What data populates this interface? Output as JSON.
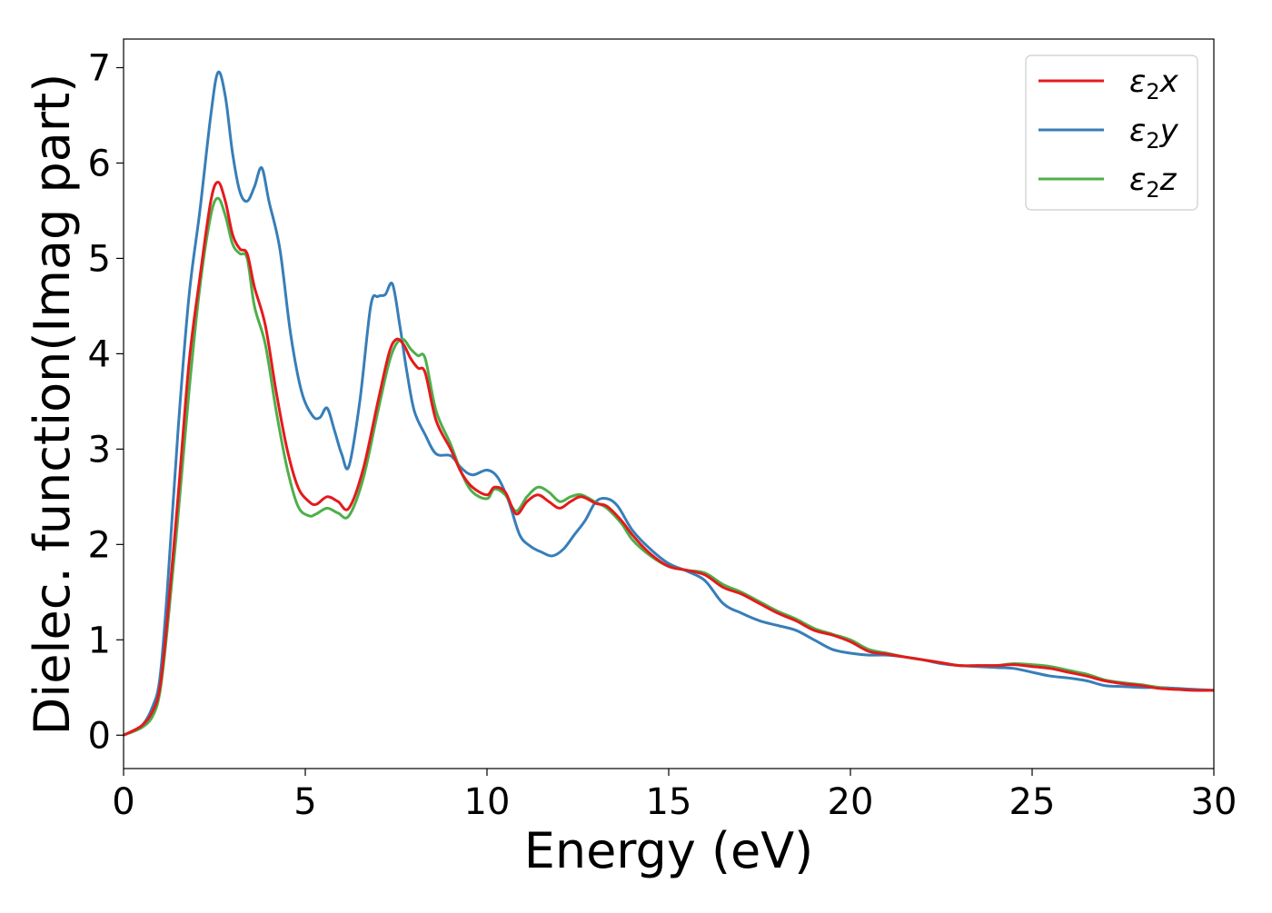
{
  "chart_data": {
    "type": "line",
    "title": "",
    "xlabel": "Energy (eV)",
    "ylabel": "Dielec. function(Imag part)",
    "xlim": [
      0,
      30
    ],
    "ylim": [
      -0.35,
      7.3
    ],
    "xticks": [
      0,
      5,
      10,
      15,
      20,
      25,
      30
    ],
    "yticks": [
      0,
      1,
      2,
      3,
      4,
      5,
      6,
      7
    ],
    "grid": false,
    "legend": "top-right",
    "legend_entries": [
      {
        "base": "ε",
        "sub": "2",
        "tail": "x"
      },
      {
        "base": "ε",
        "sub": "2",
        "tail": "y"
      },
      {
        "base": "ε",
        "sub": "2",
        "tail": "z"
      }
    ],
    "series": [
      {
        "color": "#e41a1c",
        "x": [
          0,
          0.5,
          0.8,
          1,
          1.2,
          1.5,
          1.8,
          2.1,
          2.4,
          2.6,
          2.8,
          3,
          3.2,
          3.4,
          3.6,
          3.9,
          4.2,
          4.5,
          4.8,
          5.1,
          5.3,
          5.6,
          5.9,
          6.2,
          6.6,
          7,
          7.3,
          7.5,
          7.7,
          7.9,
          8.1,
          8.3,
          8.6,
          9,
          9.3,
          9.6,
          10,
          10.2,
          10.5,
          10.8,
          11.1,
          11.4,
          11.7,
          12,
          12.3,
          12.6,
          13,
          13.3,
          13.7,
          14,
          14.5,
          15,
          15.5,
          16,
          16.5,
          17,
          17.5,
          18,
          18.5,
          19,
          19.5,
          20,
          20.5,
          21,
          21.5,
          22,
          22.5,
          23,
          23.5,
          24,
          24.5,
          25,
          25.5,
          26,
          26.5,
          27,
          27.5,
          28,
          28.5,
          29,
          29.5,
          30
        ],
        "y": [
          0,
          0.1,
          0.25,
          0.5,
          1.2,
          2.5,
          3.9,
          4.8,
          5.6,
          5.8,
          5.6,
          5.25,
          5.1,
          5.05,
          4.7,
          4.3,
          3.6,
          3.0,
          2.6,
          2.45,
          2.42,
          2.5,
          2.45,
          2.38,
          2.8,
          3.5,
          4.0,
          4.15,
          4.1,
          3.95,
          3.85,
          3.8,
          3.3,
          3.0,
          2.75,
          2.6,
          2.52,
          2.6,
          2.55,
          2.32,
          2.45,
          2.52,
          2.45,
          2.38,
          2.45,
          2.5,
          2.43,
          2.4,
          2.25,
          2.1,
          1.9,
          1.77,
          1.73,
          1.68,
          1.55,
          1.48,
          1.38,
          1.28,
          1.2,
          1.1,
          1.05,
          0.98,
          0.88,
          0.85,
          0.82,
          0.79,
          0.76,
          0.73,
          0.73,
          0.73,
          0.74,
          0.72,
          0.7,
          0.66,
          0.62,
          0.57,
          0.54,
          0.52,
          0.49,
          0.48,
          0.47,
          0.47
        ]
      },
      {
        "color": "#377eb8",
        "x": [
          0,
          0.5,
          0.8,
          1,
          1.2,
          1.5,
          1.8,
          2.1,
          2.4,
          2.6,
          2.8,
          3,
          3.2,
          3.4,
          3.6,
          3.8,
          4,
          4.3,
          4.6,
          4.9,
          5.2,
          5.4,
          5.6,
          5.8,
          6,
          6.2,
          6.5,
          6.8,
          7,
          7.2,
          7.4,
          7.6,
          7.8,
          8,
          8.3,
          8.6,
          9,
          9.3,
          9.6,
          10,
          10.3,
          10.6,
          10.9,
          11.2,
          11.5,
          11.8,
          12.1,
          12.4,
          12.7,
          13,
          13.3,
          13.6,
          14,
          14.5,
          15,
          15.5,
          16,
          16.5,
          17,
          17.5,
          18,
          18.5,
          19,
          19.5,
          20,
          20.5,
          21,
          21.5,
          22,
          22.5,
          23,
          23.5,
          24,
          24.5,
          25,
          25.5,
          26,
          26.5,
          27,
          27.5,
          28,
          28.5,
          29,
          29.5,
          30
        ],
        "y": [
          0,
          0.1,
          0.3,
          0.6,
          1.5,
          3.2,
          4.6,
          5.5,
          6.5,
          6.95,
          6.7,
          6.1,
          5.7,
          5.6,
          5.75,
          5.95,
          5.6,
          5.1,
          4.2,
          3.6,
          3.35,
          3.33,
          3.43,
          3.2,
          2.95,
          2.82,
          3.5,
          4.5,
          4.6,
          4.62,
          4.73,
          4.3,
          3.8,
          3.4,
          3.15,
          2.95,
          2.93,
          2.8,
          2.73,
          2.78,
          2.7,
          2.45,
          2.1,
          1.98,
          1.92,
          1.88,
          1.95,
          2.1,
          2.25,
          2.45,
          2.48,
          2.4,
          2.15,
          1.95,
          1.8,
          1.72,
          1.62,
          1.38,
          1.28,
          1.2,
          1.15,
          1.1,
          1.0,
          0.9,
          0.86,
          0.84,
          0.84,
          0.82,
          0.79,
          0.75,
          0.73,
          0.72,
          0.71,
          0.7,
          0.66,
          0.62,
          0.6,
          0.57,
          0.52,
          0.51,
          0.5,
          0.5,
          0.49,
          0.48,
          0.47
        ]
      },
      {
        "color": "#4daf4a",
        "x": [
          0,
          0.5,
          0.8,
          1,
          1.2,
          1.5,
          1.8,
          2.1,
          2.4,
          2.6,
          2.8,
          3,
          3.2,
          3.4,
          3.6,
          3.9,
          4.2,
          4.5,
          4.8,
          5.1,
          5.3,
          5.6,
          5.9,
          6.2,
          6.6,
          7,
          7.3,
          7.5,
          7.7,
          7.9,
          8.1,
          8.3,
          8.6,
          9,
          9.3,
          9.6,
          10,
          10.2,
          10.5,
          10.8,
          11.1,
          11.4,
          11.7,
          12,
          12.3,
          12.6,
          13,
          13.3,
          13.7,
          14,
          14.5,
          15,
          15.5,
          16,
          16.5,
          17,
          17.5,
          18,
          18.5,
          19,
          19.5,
          20,
          20.5,
          21,
          21.5,
          22,
          22.5,
          23,
          23.5,
          24,
          24.5,
          25,
          25.5,
          26,
          26.5,
          27,
          27.5,
          28,
          28.5,
          29,
          29.5,
          30
        ],
        "y": [
          0,
          0.08,
          0.2,
          0.45,
          1.1,
          2.3,
          3.6,
          4.7,
          5.45,
          5.63,
          5.45,
          5.15,
          5.05,
          5.0,
          4.5,
          4.1,
          3.4,
          2.8,
          2.4,
          2.3,
          2.32,
          2.38,
          2.33,
          2.3,
          2.7,
          3.4,
          3.9,
          4.1,
          4.15,
          4.05,
          3.98,
          3.95,
          3.4,
          3.05,
          2.75,
          2.55,
          2.48,
          2.58,
          2.52,
          2.35,
          2.5,
          2.6,
          2.55,
          2.45,
          2.5,
          2.52,
          2.44,
          2.38,
          2.22,
          2.05,
          1.88,
          1.77,
          1.73,
          1.7,
          1.58,
          1.5,
          1.4,
          1.3,
          1.22,
          1.12,
          1.06,
          1.0,
          0.9,
          0.86,
          0.82,
          0.79,
          0.76,
          0.73,
          0.73,
          0.73,
          0.75,
          0.74,
          0.72,
          0.68,
          0.64,
          0.58,
          0.55,
          0.53,
          0.5,
          0.48,
          0.47,
          0.47
        ]
      }
    ]
  }
}
